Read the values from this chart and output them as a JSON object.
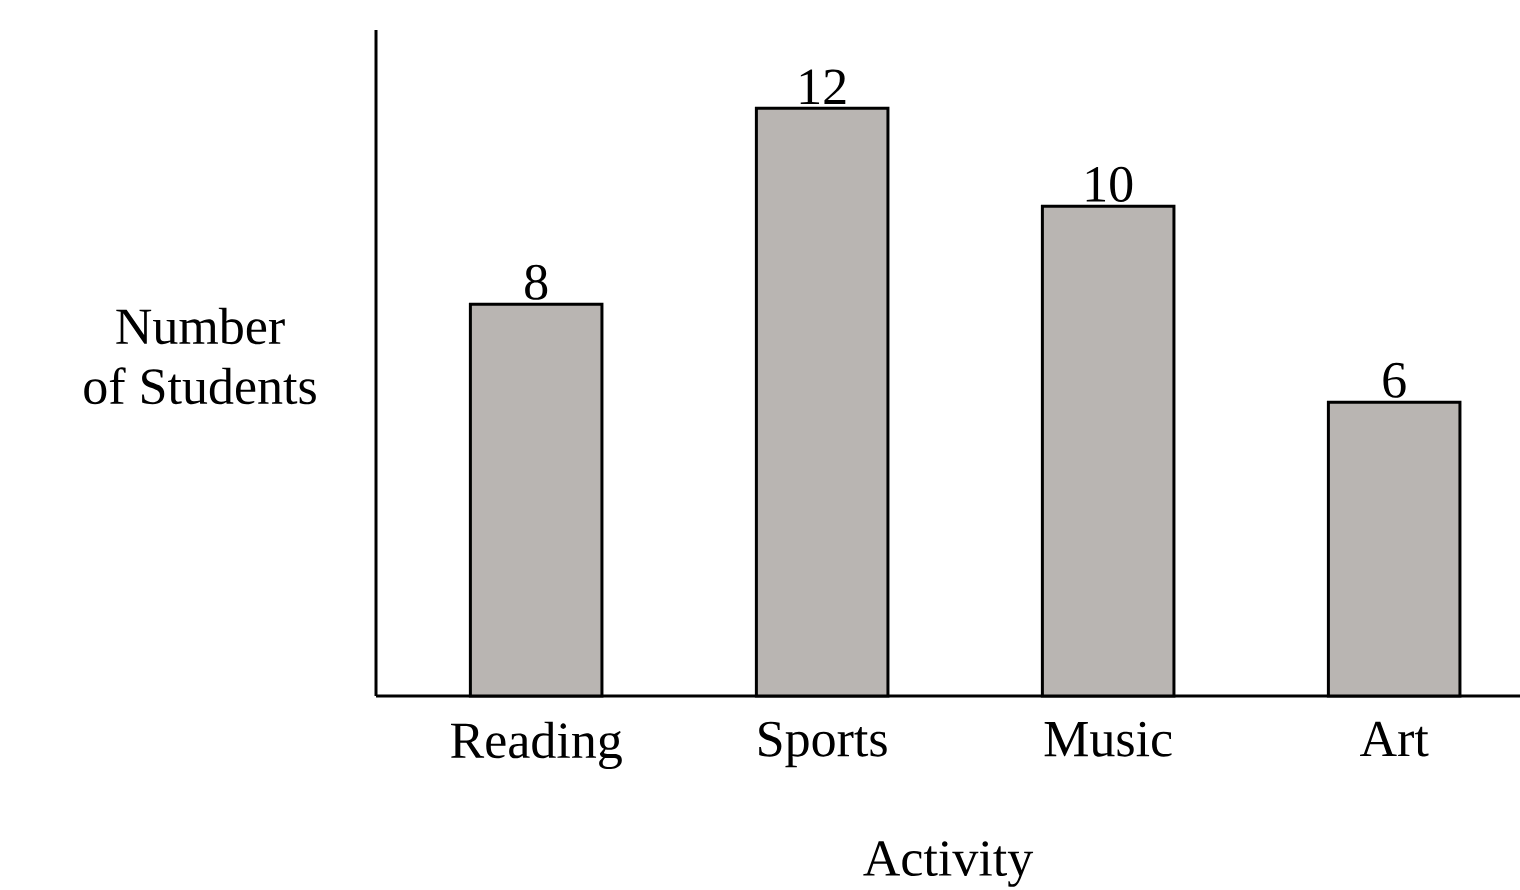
{
  "chart_data": {
    "type": "bar",
    "xlabel": "Activity",
    "ylabel": "Number of Students",
    "categories": [
      "Reading",
      "Sports",
      "Music",
      "Art"
    ],
    "values": [
      8,
      12,
      10,
      6
    ],
    "color": "#b9b5b2",
    "ylim": [
      0,
      13.6
    ],
    "tick_labels": "x",
    "data_labels": true
  }
}
